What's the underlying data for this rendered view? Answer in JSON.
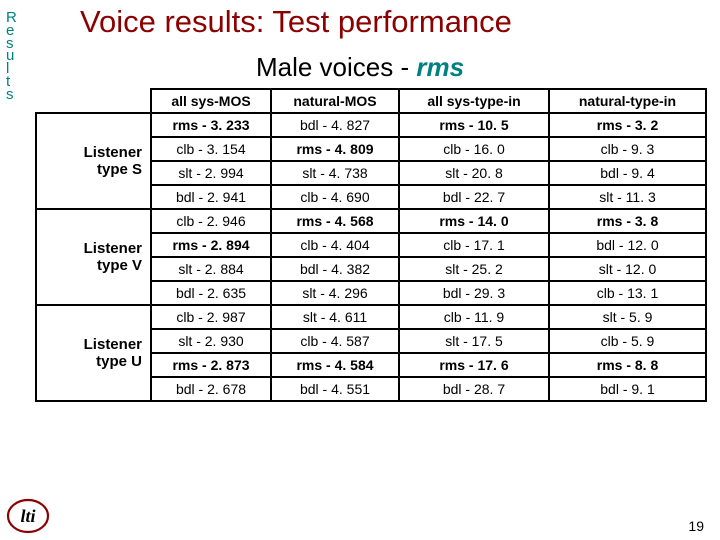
{
  "colors": {
    "title": "#8b0000",
    "subtitle_em": "#008080",
    "text": "#000000",
    "sidelabel": "#008080"
  },
  "side_label": [
    "R",
    "e",
    "s",
    "u",
    "l",
    "t",
    "s"
  ],
  "slide_title": "Voice results: Test performance",
  "subtitle_prefix": "Male voices - ",
  "subtitle_em": "rms",
  "page_number": "19",
  "headers": [
    "all sys-MOS",
    "natural-MOS",
    "all sys-type-in",
    "natural-type-in"
  ],
  "groups": [
    {
      "label": "Listener type S",
      "rows": [
        {
          "cells": [
            {
              "t": "rms - 3. 233",
              "b": 1
            },
            {
              "t": "bdl - 4. 827",
              "b": 0
            },
            {
              "t": "rms - 10. 5",
              "b": 1
            },
            {
              "t": "rms - 3. 2",
              "b": 1
            }
          ]
        },
        {
          "cells": [
            {
              "t": "clb - 3. 154",
              "b": 0
            },
            {
              "t": "rms - 4. 809",
              "b": 1
            },
            {
              "t": "clb - 16. 0",
              "b": 0
            },
            {
              "t": "clb - 9. 3",
              "b": 0
            }
          ]
        },
        {
          "cells": [
            {
              "t": "slt - 2. 994",
              "b": 0
            },
            {
              "t": "slt - 4. 738",
              "b": 0
            },
            {
              "t": "slt - 20. 8",
              "b": 0
            },
            {
              "t": "bdl - 9. 4",
              "b": 0
            }
          ]
        },
        {
          "cells": [
            {
              "t": "bdl - 2. 941",
              "b": 0
            },
            {
              "t": "clb - 4. 690",
              "b": 0
            },
            {
              "t": "bdl - 22. 7",
              "b": 0
            },
            {
              "t": "slt - 11. 3",
              "b": 0
            }
          ]
        }
      ]
    },
    {
      "label": "Listener type V",
      "rows": [
        {
          "cells": [
            {
              "t": "clb - 2. 946",
              "b": 0
            },
            {
              "t": "rms - 4. 568",
              "b": 1
            },
            {
              "t": "rms - 14. 0",
              "b": 1
            },
            {
              "t": "rms - 3. 8",
              "b": 1
            }
          ]
        },
        {
          "cells": [
            {
              "t": "rms - 2. 894",
              "b": 1
            },
            {
              "t": "clb - 4. 404",
              "b": 0
            },
            {
              "t": "clb - 17. 1",
              "b": 0
            },
            {
              "t": "bdl - 12. 0",
              "b": 0
            }
          ]
        },
        {
          "cells": [
            {
              "t": "slt - 2. 884",
              "b": 0
            },
            {
              "t": "bdl - 4. 382",
              "b": 0
            },
            {
              "t": "slt - 25. 2",
              "b": 0
            },
            {
              "t": "slt - 12. 0",
              "b": 0
            }
          ]
        },
        {
          "cells": [
            {
              "t": "bdl - 2. 635",
              "b": 0
            },
            {
              "t": "slt - 4. 296",
              "b": 0
            },
            {
              "t": "bdl - 29. 3",
              "b": 0
            },
            {
              "t": "clb - 13. 1",
              "b": 0
            }
          ]
        }
      ]
    },
    {
      "label": "Listener type U",
      "rows": [
        {
          "cells": [
            {
              "t": "clb - 2. 987",
              "b": 0
            },
            {
              "t": "slt - 4. 611",
              "b": 0
            },
            {
              "t": "clb - 11. 9",
              "b": 0
            },
            {
              "t": "slt - 5. 9",
              "b": 0
            }
          ]
        },
        {
          "cells": [
            {
              "t": "slt - 2. 930",
              "b": 0
            },
            {
              "t": "clb - 4. 587",
              "b": 0
            },
            {
              "t": "slt - 17. 5",
              "b": 0
            },
            {
              "t": "clb - 5. 9",
              "b": 0
            }
          ]
        },
        {
          "cells": [
            {
              "t": "rms - 2. 873",
              "b": 1
            },
            {
              "t": "rms - 4. 584",
              "b": 1
            },
            {
              "t": "rms - 17. 6",
              "b": 1
            },
            {
              "t": "rms - 8. 8",
              "b": 1
            }
          ]
        },
        {
          "cells": [
            {
              "t": "bdl - 2. 678",
              "b": 0
            },
            {
              "t": "bdl - 4. 551",
              "b": 0
            },
            {
              "t": "bdl - 28. 7",
              "b": 0
            },
            {
              "t": "bdl - 9. 1",
              "b": 0
            }
          ]
        }
      ]
    }
  ]
}
